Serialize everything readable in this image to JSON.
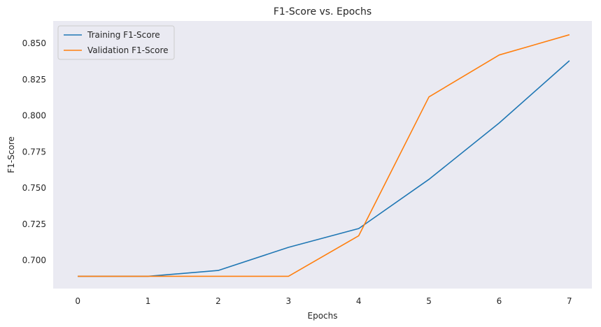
{
  "chart_data": {
    "type": "line",
    "title": "F1-Score vs. Epochs",
    "xlabel": "Epochs",
    "ylabel": "F1-Score",
    "x": [
      0,
      1,
      2,
      3,
      4,
      5,
      6,
      7
    ],
    "xlim": [
      -0.35,
      7.32
    ],
    "ylim": [
      0.6805,
      0.8655
    ],
    "xticks": [
      0,
      1,
      2,
      3,
      4,
      5,
      6,
      7
    ],
    "yticks": [
      0.7,
      0.725,
      0.75,
      0.775,
      0.8,
      0.825,
      0.85
    ],
    "ytick_labels": [
      "0.700",
      "0.725",
      "0.750",
      "0.775",
      "0.800",
      "0.825",
      "0.850"
    ],
    "grid": false,
    "legend_position": "upper-left",
    "background": "#eaeaf2",
    "series": [
      {
        "name": "Training F1-Score",
        "color": "#1f77b4",
        "values": [
          0.689,
          0.689,
          0.693,
          0.709,
          0.722,
          0.756,
          0.795,
          0.838
        ]
      },
      {
        "name": "Validation F1-Score",
        "color": "#ff7f0e",
        "values": [
          0.689,
          0.689,
          0.689,
          0.689,
          0.717,
          0.813,
          0.842,
          0.856
        ]
      }
    ]
  }
}
